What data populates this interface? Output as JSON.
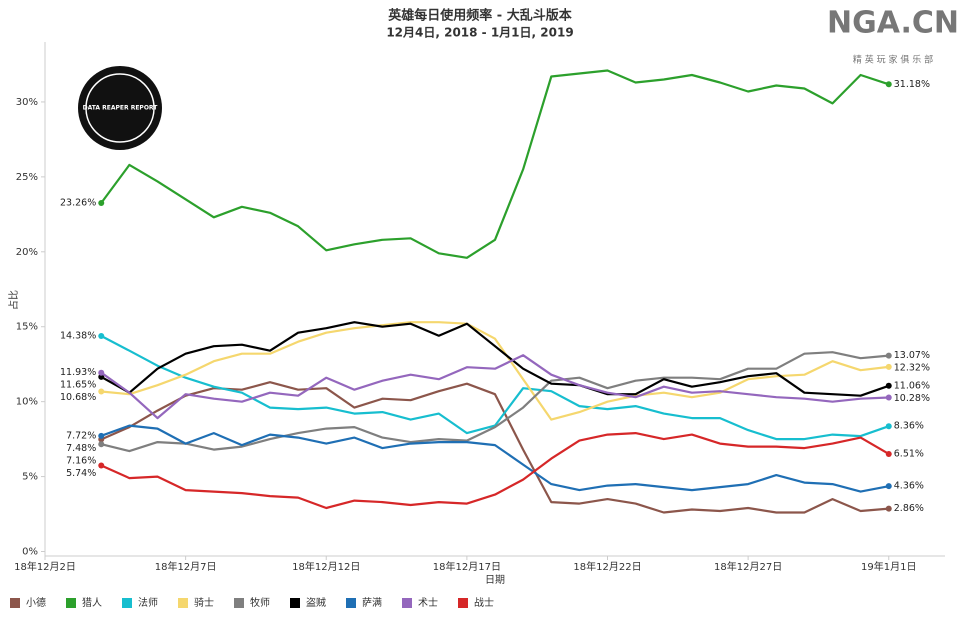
{
  "chart_data": {
    "type": "line",
    "title": "英雄每日使用频率 - 大乱斗版本",
    "subtitle": "12月4日, 2018 - 1月1日, 2019",
    "y_label": "占比",
    "x_label": "日期",
    "logo": "NGA.CN",
    "logo_sub": "精 英 玩 家 俱 乐 部",
    "badge": "DATA REAPER REPORT",
    "x": [
      "2018-12-04",
      "2018-12-05",
      "2018-12-06",
      "2018-12-07",
      "2018-12-08",
      "2018-12-09",
      "2018-12-10",
      "2018-12-11",
      "2018-12-12",
      "2018-12-13",
      "2018-12-14",
      "2018-12-15",
      "2018-12-16",
      "2018-12-17",
      "2018-12-18",
      "2018-12-19",
      "2018-12-20",
      "2018-12-21",
      "2018-12-22",
      "2018-12-23",
      "2018-12-24",
      "2018-12-25",
      "2018-12-26",
      "2018-12-27",
      "2018-12-28",
      "2018-12-29",
      "2018-12-30",
      "2018-12-31",
      "2019-01-01"
    ],
    "xlim": [
      "2018-12-02",
      "2019-01-03"
    ],
    "xticks": [
      {
        "value": "2018-12-02",
        "label": "18年12月2日"
      },
      {
        "value": "2018-12-07",
        "label": "18年12月7日"
      },
      {
        "value": "2018-12-12",
        "label": "18年12月12日"
      },
      {
        "value": "2018-12-17",
        "label": "18年12月17日"
      },
      {
        "value": "2018-12-22",
        "label": "18年12月22日"
      },
      {
        "value": "2018-12-27",
        "label": "18年12月27日"
      },
      {
        "value": "2019-01-01",
        "label": "19年1月1日"
      }
    ],
    "ylim": [
      -0.3,
      34
    ],
    "yticks": [
      {
        "value": 0,
        "label": "0%"
      },
      {
        "value": 5,
        "label": "5%"
      },
      {
        "value": 10,
        "label": "10%"
      },
      {
        "value": 15,
        "label": "15%"
      },
      {
        "value": 20,
        "label": "20%"
      },
      {
        "value": 25,
        "label": "25%"
      },
      {
        "value": 30,
        "label": "30%"
      }
    ],
    "grid": false,
    "legend": "bottom-left",
    "series": [
      {
        "name": "小德",
        "color": "#8c564b",
        "values": [
          7.48,
          8.3,
          9.4,
          10.4,
          10.9,
          10.8,
          11.3,
          10.8,
          10.9,
          9.6,
          10.2,
          10.1,
          10.7,
          11.2,
          10.5,
          6.8,
          3.3,
          3.2,
          3.5,
          3.2,
          2.6,
          2.8,
          2.7,
          2.9,
          2.6,
          2.6,
          3.5,
          2.7,
          2.86
        ],
        "value_labels": [
          "7.48%",
          null,
          null,
          null,
          null,
          null,
          null,
          null,
          null,
          null,
          null,
          null,
          null,
          null,
          null,
          null,
          null,
          null,
          null,
          null,
          null,
          null,
          null,
          null,
          null,
          null,
          null,
          null,
          "2.86%"
        ]
      },
      {
        "name": "猎人",
        "color": "#2ca02c",
        "values": [
          23.26,
          25.8,
          24.7,
          23.5,
          22.3,
          23.0,
          22.6,
          21.7,
          20.1,
          20.5,
          20.8,
          20.9,
          19.9,
          19.6,
          20.8,
          25.5,
          31.7,
          31.9,
          32.1,
          31.3,
          31.5,
          31.8,
          31.3,
          30.7,
          31.1,
          30.9,
          29.9,
          31.8,
          31.18
        ],
        "value_labels": [
          "23.26%",
          null,
          null,
          null,
          null,
          null,
          null,
          null,
          null,
          null,
          null,
          null,
          null,
          null,
          null,
          null,
          null,
          null,
          null,
          null,
          null,
          null,
          null,
          null,
          null,
          null,
          null,
          null,
          "31.18%"
        ]
      },
      {
        "name": "法师",
        "color": "#17becf",
        "values": [
          14.38,
          13.4,
          12.4,
          11.6,
          11.0,
          10.6,
          9.6,
          9.5,
          9.6,
          9.2,
          9.3,
          8.8,
          9.2,
          7.9,
          8.4,
          10.9,
          10.7,
          9.7,
          9.5,
          9.7,
          9.2,
          8.9,
          8.9,
          8.1,
          7.5,
          7.5,
          7.8,
          7.7,
          8.36
        ],
        "value_labels": [
          "14.38%",
          null,
          null,
          null,
          null,
          null,
          null,
          null,
          null,
          null,
          null,
          null,
          null,
          null,
          null,
          null,
          null,
          null,
          null,
          null,
          null,
          null,
          null,
          null,
          null,
          null,
          null,
          null,
          "8.36%"
        ]
      },
      {
        "name": "骑士",
        "color": "#f5d76e",
        "values": [
          10.68,
          10.5,
          11.1,
          11.8,
          12.7,
          13.2,
          13.2,
          14.0,
          14.6,
          14.9,
          15.1,
          15.3,
          15.3,
          15.2,
          14.2,
          11.5,
          8.8,
          9.3,
          10.0,
          10.4,
          10.6,
          10.3,
          10.6,
          11.5,
          11.7,
          11.8,
          12.7,
          12.1,
          12.32
        ],
        "value_labels": [
          "10.68%",
          null,
          null,
          null,
          null,
          null,
          null,
          null,
          null,
          null,
          null,
          null,
          null,
          null,
          null,
          null,
          null,
          null,
          null,
          null,
          null,
          null,
          null,
          null,
          null,
          null,
          null,
          null,
          "12.32%"
        ]
      },
      {
        "name": "牧师",
        "color": "#7f7f7f",
        "values": [
          7.16,
          6.7,
          7.3,
          7.2,
          6.8,
          7.0,
          7.5,
          7.9,
          8.2,
          8.3,
          7.6,
          7.3,
          7.5,
          7.4,
          8.3,
          9.6,
          11.4,
          11.6,
          10.9,
          11.4,
          11.6,
          11.6,
          11.5,
          12.2,
          12.2,
          13.2,
          13.3,
          12.9,
          13.07
        ],
        "value_labels": [
          "7.16%",
          null,
          null,
          null,
          null,
          null,
          null,
          null,
          null,
          null,
          null,
          null,
          null,
          null,
          null,
          null,
          null,
          null,
          null,
          null,
          null,
          null,
          null,
          null,
          null,
          null,
          null,
          null,
          "13.07%"
        ]
      },
      {
        "name": "盗贼",
        "color": "#000000",
        "values": [
          11.65,
          10.6,
          12.2,
          13.2,
          13.7,
          13.8,
          13.4,
          14.6,
          14.9,
          15.3,
          15.0,
          15.2,
          14.4,
          15.2,
          13.7,
          12.2,
          11.2,
          11.1,
          10.5,
          10.5,
          11.5,
          11.0,
          11.3,
          11.7,
          11.9,
          10.6,
          10.5,
          10.4,
          11.06
        ],
        "value_labels": [
          "11.65%",
          null,
          null,
          null,
          null,
          null,
          null,
          null,
          null,
          null,
          null,
          null,
          null,
          null,
          null,
          null,
          null,
          null,
          null,
          null,
          null,
          null,
          null,
          null,
          null,
          null,
          null,
          null,
          "11.06%"
        ]
      },
      {
        "name": "萨满",
        "color": "#1f6fb4",
        "values": [
          7.72,
          8.4,
          8.2,
          7.2,
          7.9,
          7.1,
          7.8,
          7.6,
          7.2,
          7.6,
          6.9,
          7.2,
          7.3,
          7.3,
          7.1,
          5.8,
          4.5,
          4.1,
          4.4,
          4.5,
          4.3,
          4.1,
          4.3,
          4.5,
          5.1,
          4.6,
          4.5,
          4.0,
          4.36
        ],
        "value_labels": [
          "7.72%",
          null,
          null,
          null,
          null,
          null,
          null,
          null,
          null,
          null,
          null,
          null,
          null,
          null,
          null,
          null,
          null,
          null,
          null,
          null,
          null,
          null,
          null,
          null,
          null,
          null,
          null,
          null,
          "4.36%"
        ]
      },
      {
        "name": "术士",
        "color": "#9467bd",
        "values": [
          11.93,
          10.6,
          8.9,
          10.5,
          10.2,
          10.0,
          10.6,
          10.4,
          11.6,
          10.8,
          11.4,
          11.8,
          11.5,
          12.3,
          12.2,
          13.1,
          11.8,
          11.1,
          10.6,
          10.3,
          11.0,
          10.6,
          10.7,
          10.5,
          10.3,
          10.2,
          10.0,
          10.2,
          10.28
        ],
        "value_labels": [
          "11.93%",
          null,
          null,
          null,
          null,
          null,
          null,
          null,
          null,
          null,
          null,
          null,
          null,
          null,
          null,
          null,
          null,
          null,
          null,
          null,
          null,
          null,
          null,
          null,
          null,
          null,
          null,
          null,
          "10.28%"
        ]
      },
      {
        "name": "战士",
        "color": "#d62728",
        "values": [
          5.74,
          4.9,
          5.0,
          4.1,
          4.0,
          3.9,
          3.7,
          3.6,
          2.9,
          3.4,
          3.3,
          3.1,
          3.3,
          3.2,
          3.8,
          4.8,
          6.2,
          7.4,
          7.8,
          7.9,
          7.5,
          7.8,
          7.2,
          7.0,
          7.0,
          6.9,
          7.2,
          7.6,
          6.51
        ],
        "value_labels": [
          "5.74%",
          null,
          null,
          null,
          null,
          null,
          null,
          null,
          null,
          null,
          null,
          null,
          null,
          null,
          null,
          null,
          null,
          null,
          null,
          null,
          null,
          null,
          null,
          null,
          null,
          null,
          null,
          null,
          "6.51%"
        ]
      }
    ]
  }
}
